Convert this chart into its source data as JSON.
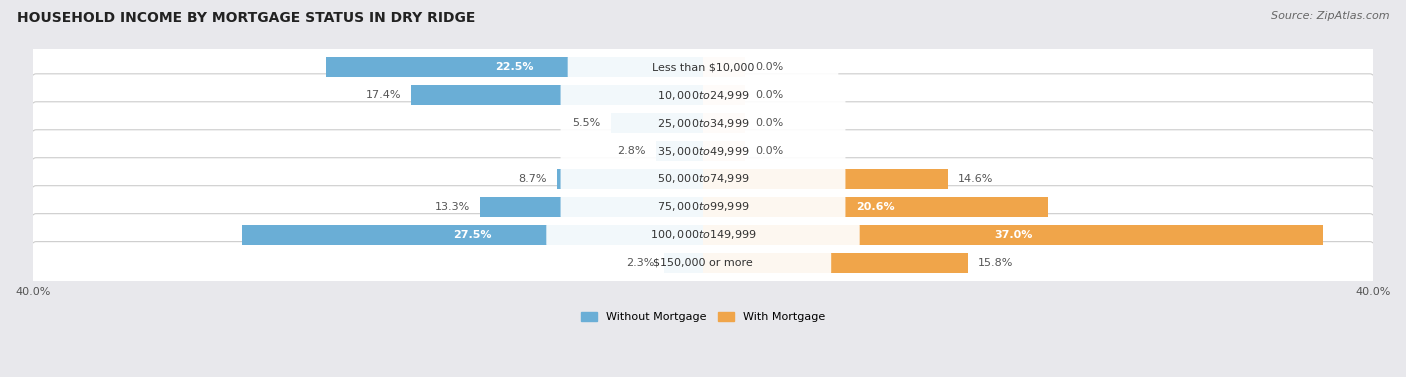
{
  "title": "HOUSEHOLD INCOME BY MORTGAGE STATUS IN DRY RIDGE",
  "source": "Source: ZipAtlas.com",
  "categories": [
    "Less than $10,000",
    "$10,000 to $24,999",
    "$25,000 to $34,999",
    "$35,000 to $49,999",
    "$50,000 to $74,999",
    "$75,000 to $99,999",
    "$100,000 to $149,999",
    "$150,000 or more"
  ],
  "without_mortgage": [
    22.5,
    17.4,
    5.5,
    2.8,
    8.7,
    13.3,
    27.5,
    2.3
  ],
  "with_mortgage": [
    0.0,
    0.0,
    0.0,
    0.0,
    14.6,
    20.6,
    37.0,
    15.8
  ],
  "with_mortgage_stub": [
    2.5,
    2.5,
    2.5,
    2.5,
    14.6,
    20.6,
    37.0,
    15.8
  ],
  "color_without": "#6aaed6",
  "color_with_stub": "#f5d9b8",
  "color_with_full": "#f0a54a",
  "axis_max": 40.0,
  "bg_color": "#e8e8ec",
  "title_fontsize": 10,
  "source_fontsize": 8,
  "label_fontsize": 8,
  "cat_fontsize": 8,
  "tick_fontsize": 8,
  "without_label_inside_threshold": 20.0,
  "with_label_inside_threshold": 20.0
}
